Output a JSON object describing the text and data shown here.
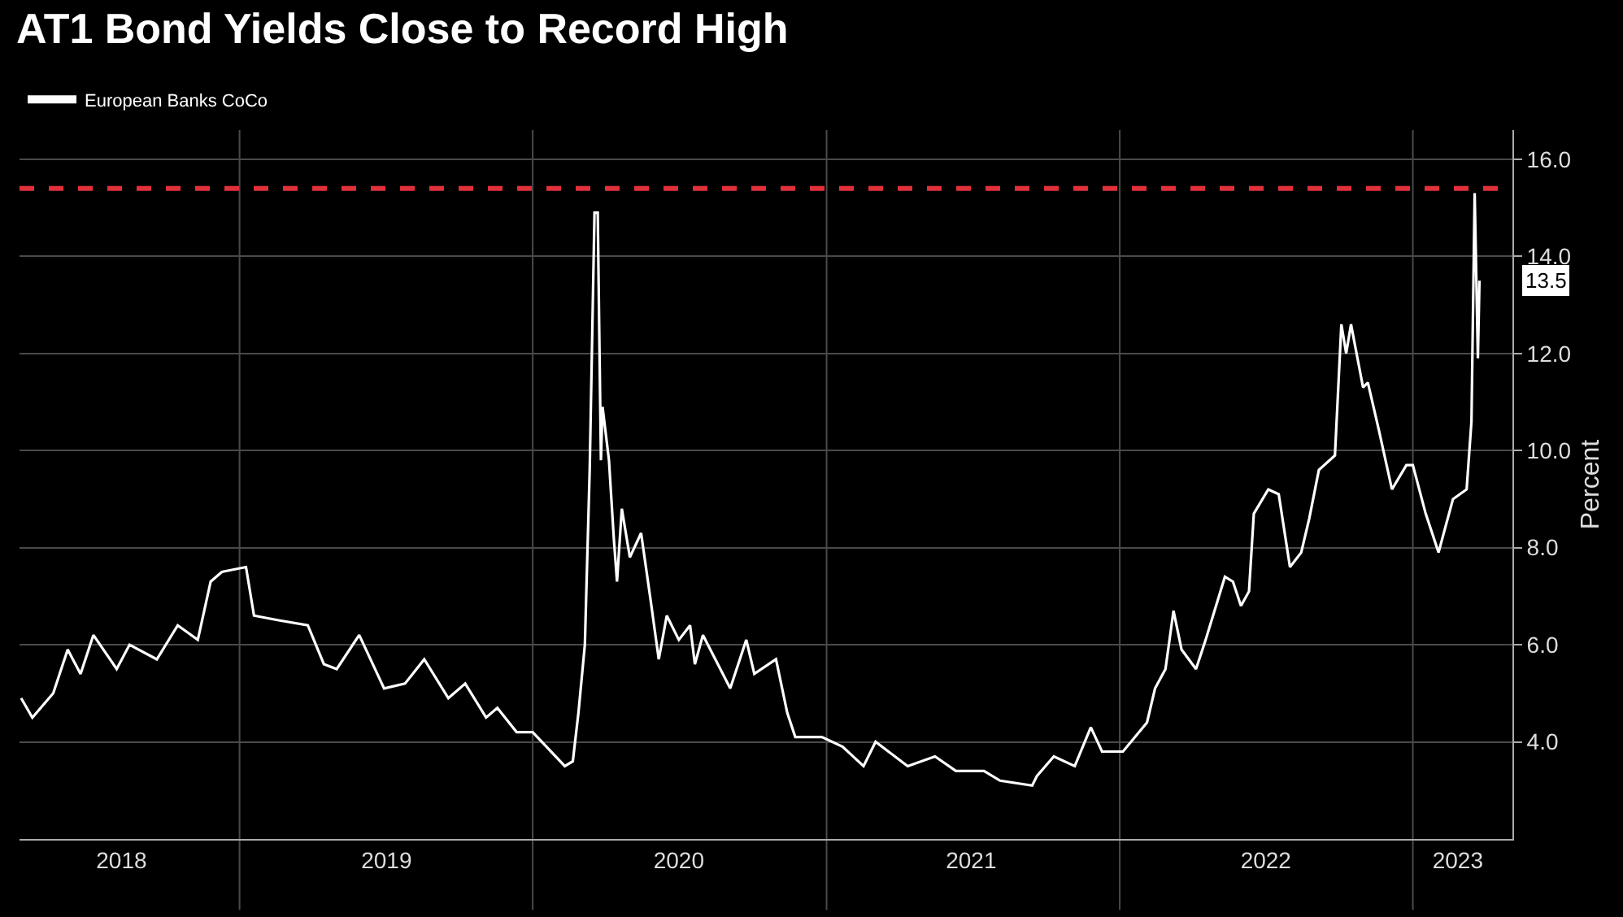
{
  "chart_data": {
    "type": "line",
    "title": "AT1 Bond Yields Close to Record High",
    "ylabel": "Percent",
    "series": [
      {
        "name": "European Banks CoCo",
        "color": "#ffffff",
        "x": [
          "2018-04-04",
          "2018-04-18",
          "2018-05-14",
          "2018-06-01",
          "2018-06-17",
          "2018-07-03",
          "2018-08-01",
          "2018-08-17",
          "2018-09-20",
          "2018-10-16",
          "2018-11-10",
          "2018-11-26",
          "2018-12-10",
          "2019-01-09",
          "2019-01-19",
          "2019-02-20",
          "2019-03-27",
          "2019-04-16",
          "2019-05-02",
          "2019-05-30",
          "2019-06-30",
          "2019-07-26",
          "2019-08-19",
          "2019-09-18",
          "2019-10-09",
          "2019-11-04",
          "2019-11-18",
          "2019-12-12",
          "2020-01-01",
          "2020-02-10",
          "2020-02-20",
          "2020-02-27",
          "2020-03-06",
          "2020-03-12",
          "2020-03-18",
          "2020-03-22",
          "2020-03-26",
          "2020-03-28",
          "2020-04-05",
          "2020-04-11",
          "2020-04-15",
          "2020-04-21",
          "2020-05-01",
          "2020-05-15",
          "2020-05-27",
          "2020-06-06",
          "2020-06-16",
          "2020-07-01",
          "2020-07-15",
          "2020-07-21",
          "2020-07-31",
          "2020-09-03",
          "2020-09-23",
          "2020-10-03",
          "2020-10-30",
          "2020-11-13",
          "2020-11-23",
          "2020-12-26",
          "2021-01-21",
          "2021-02-16",
          "2021-03-03",
          "2021-04-12",
          "2021-05-16",
          "2021-06-11",
          "2021-07-16",
          "2021-08-05",
          "2021-09-14",
          "2021-09-20",
          "2021-10-11",
          "2021-11-06",
          "2021-11-26",
          "2021-12-10",
          "2022-01-05",
          "2022-02-04",
          "2022-02-14",
          "2022-02-27",
          "2022-03-09",
          "2022-03-19",
          "2022-04-06",
          "2022-04-18",
          "2022-05-12",
          "2022-05-22",
          "2022-06-01",
          "2022-06-11",
          "2022-06-17",
          "2022-07-05",
          "2022-07-18",
          "2022-08-01",
          "2022-08-15",
          "2022-08-25",
          "2022-09-06",
          "2022-09-26",
          "2022-10-04",
          "2022-10-10",
          "2022-10-16",
          "2022-10-31",
          "2022-11-06",
          "2022-11-20",
          "2022-12-06",
          "2022-12-24",
          "2023-01-01",
          "2023-01-17",
          "2023-02-02",
          "2023-02-20",
          "2023-03-09",
          "2023-03-15",
          "2023-03-19",
          "2023-03-23",
          "2023-03-25"
        ],
        "values": [
          4.9,
          4.5,
          5.0,
          5.9,
          5.4,
          6.2,
          5.5,
          6.0,
          5.7,
          6.4,
          6.1,
          7.3,
          7.5,
          7.6,
          6.6,
          6.5,
          6.4,
          5.6,
          5.5,
          6.2,
          5.1,
          5.2,
          5.7,
          4.9,
          5.2,
          4.5,
          4.7,
          4.2,
          4.2,
          3.5,
          3.6,
          4.6,
          6.0,
          9.6,
          14.9,
          14.9,
          9.8,
          10.9,
          9.8,
          8.2,
          7.3,
          8.8,
          7.8,
          8.3,
          6.9,
          5.7,
          6.6,
          6.1,
          6.4,
          5.6,
          6.2,
          5.1,
          6.1,
          5.4,
          5.7,
          4.6,
          4.1,
          4.1,
          3.9,
          3.5,
          4.0,
          3.5,
          3.7,
          3.4,
          3.4,
          3.2,
          3.1,
          3.3,
          3.7,
          3.5,
          4.3,
          3.8,
          3.8,
          4.4,
          5.1,
          5.5,
          6.7,
          5.9,
          5.5,
          6.1,
          7.4,
          7.3,
          6.8,
          7.1,
          8.7,
          9.2,
          9.1,
          7.6,
          7.9,
          8.6,
          9.6,
          9.9,
          12.6,
          12.0,
          12.6,
          11.3,
          11.4,
          10.4,
          9.2,
          9.7,
          9.7,
          8.7,
          7.9,
          9.0,
          9.2,
          10.6,
          15.3,
          11.9,
          13.5
        ]
      }
    ],
    "xlim": [
      "2018-04-02",
      "2023-05-05"
    ],
    "xticks": [
      {
        "value": "2018-08-07",
        "label": "2018"
      },
      {
        "value": "2019-01-01",
        "label": null
      },
      {
        "value": "2019-07-03",
        "label": "2019"
      },
      {
        "value": "2020-01-01",
        "label": null
      },
      {
        "value": "2020-07-01",
        "label": "2020"
      },
      {
        "value": "2021-01-01",
        "label": null
      },
      {
        "value": "2021-06-30",
        "label": "2021"
      },
      {
        "value": "2022-01-01",
        "label": null
      },
      {
        "value": "2022-07-02",
        "label": "2022"
      },
      {
        "value": "2023-01-01",
        "label": null
      },
      {
        "value": "2023-02-26",
        "label": "2023"
      }
    ],
    "ylim": [
      2,
      16.6
    ],
    "yticks": [
      {
        "value": 4,
        "label": "4.0"
      },
      {
        "value": 6,
        "label": "6.0"
      },
      {
        "value": 8,
        "label": "8.0"
      },
      {
        "value": 10,
        "label": "10.0"
      },
      {
        "value": 12,
        "label": "12.0"
      },
      {
        "value": 14,
        "label": "14.0"
      },
      {
        "value": 16,
        "label": "16.0"
      }
    ],
    "ref_lines": [
      {
        "axis": "y",
        "value": 15.4,
        "color": "#e0303a",
        "line_style": "dashed"
      }
    ],
    "annotations": [
      {
        "text": "13.5",
        "x": "2023-03-25",
        "y": 13.5
      }
    ],
    "grid": true,
    "legend": "top left",
    "line_style": "solid",
    "marker": "none"
  }
}
